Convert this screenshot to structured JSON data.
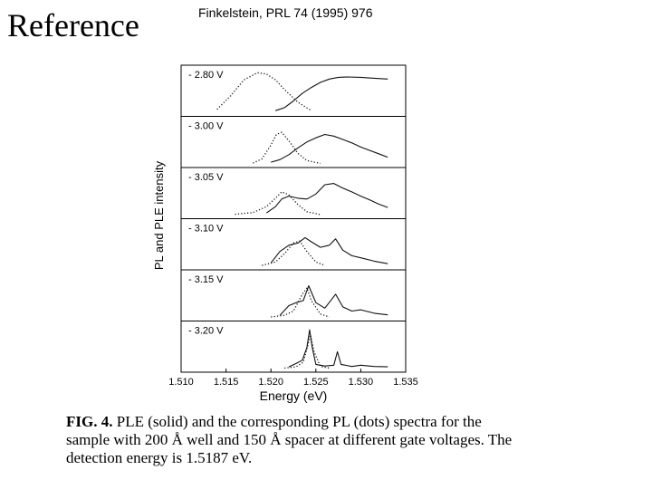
{
  "slide": {
    "title": "Reference",
    "citation": "Finkelstein, PRL 74 (1995) 976"
  },
  "figure": {
    "caption_lead": "FIG. 4.",
    "caption_body": "PLE (solid) and the corresponding PL (dots) spectra for the sample with 200 Å well and 150 Å spacer at different gate voltages. The detection energy is 1.5187 eV."
  },
  "chart_data": {
    "type": "line",
    "title": "",
    "xlabel": "Energy (eV)",
    "ylabel": "PL and PLE intensity",
    "xlim": [
      1.51,
      1.535
    ],
    "x_ticks": [
      "1.510",
      "1.515",
      "1.520",
      "1.525",
      "1.530",
      "1.535"
    ],
    "x_tick_values": [
      1.51,
      1.515,
      1.52,
      1.525,
      1.53,
      1.535
    ],
    "panels": [
      {
        "label": "- 2.80 V",
        "series": [
          {
            "name": "PLE (solid)",
            "style": "solid",
            "x": [
              1.5205,
              1.5215,
              1.5225,
              1.5235,
              1.5245,
              1.5255,
              1.5265,
              1.5275,
              1.5285,
              1.53,
              1.5315,
              1.533
            ],
            "y": [
              0.05,
              0.12,
              0.28,
              0.46,
              0.6,
              0.72,
              0.8,
              0.84,
              0.85,
              0.84,
              0.82,
              0.8
            ]
          },
          {
            "name": "PL (dots)",
            "style": "dotted",
            "x": [
              1.514,
              1.5155,
              1.517,
              1.5185,
              1.5195,
              1.5205,
              1.5215,
              1.523,
              1.5245
            ],
            "y": [
              0.08,
              0.4,
              0.78,
              0.95,
              0.92,
              0.78,
              0.55,
              0.25,
              0.05
            ]
          }
        ]
      },
      {
        "label": "- 3.00 V",
        "series": [
          {
            "name": "PLE (solid)",
            "style": "solid",
            "x": [
              1.52,
              1.521,
              1.522,
              1.523,
              1.524,
              1.525,
              1.526,
              1.527,
              1.528,
              1.529,
              1.53,
              1.531,
              1.532,
              1.533
            ],
            "y": [
              0.04,
              0.1,
              0.22,
              0.38,
              0.52,
              0.62,
              0.7,
              0.66,
              0.58,
              0.5,
              0.4,
              0.32,
              0.24,
              0.16
            ]
          },
          {
            "name": "PL (dots)",
            "style": "dotted",
            "x": [
              1.518,
              1.519,
              1.52,
              1.5206,
              1.5212,
              1.522,
              1.523,
              1.524,
              1.5255
            ],
            "y": [
              0.02,
              0.12,
              0.45,
              0.7,
              0.75,
              0.55,
              0.25,
              0.08,
              0.01
            ]
          }
        ]
      },
      {
        "label": "- 3.05 V",
        "series": [
          {
            "name": "PLE (solid)",
            "style": "solid",
            "x": [
              1.5195,
              1.5205,
              1.5212,
              1.522,
              1.523,
              1.524,
              1.525,
              1.526,
              1.527,
              1.528,
              1.529,
              1.53,
              1.531,
              1.532,
              1.533
            ],
            "y": [
              0.05,
              0.2,
              0.38,
              0.45,
              0.4,
              0.38,
              0.5,
              0.72,
              0.75,
              0.64,
              0.55,
              0.45,
              0.36,
              0.26,
              0.18
            ]
          },
          {
            "name": "PL (dots)",
            "style": "dotted",
            "x": [
              1.516,
              1.518,
              1.5195,
              1.5205,
              1.5212,
              1.522,
              1.523,
              1.524,
              1.5255
            ],
            "y": [
              0.02,
              0.06,
              0.2,
              0.4,
              0.55,
              0.48,
              0.25,
              0.08,
              0.01
            ]
          }
        ]
      },
      {
        "label": "- 3.10 V",
        "series": [
          {
            "name": "PLE (solid)",
            "style": "solid",
            "x": [
              1.52,
              1.521,
              1.522,
              1.523,
              1.5238,
              1.5245,
              1.5255,
              1.5265,
              1.5272,
              1.528,
              1.529,
              1.53,
              1.5315,
              1.533
            ],
            "y": [
              0.08,
              0.35,
              0.5,
              0.55,
              0.68,
              0.58,
              0.45,
              0.5,
              0.65,
              0.38,
              0.25,
              0.2,
              0.12,
              0.06
            ]
          },
          {
            "name": "PL (dots)",
            "style": "dotted",
            "x": [
              1.519,
              1.5205,
              1.5215,
              1.5225,
              1.5232,
              1.524,
              1.525,
              1.526
            ],
            "y": [
              0.02,
              0.1,
              0.3,
              0.55,
              0.6,
              0.35,
              0.1,
              0.02
            ]
          }
        ]
      },
      {
        "label": "- 3.15 V",
        "series": [
          {
            "name": "PLE (solid)",
            "style": "solid",
            "x": [
              1.521,
              1.522,
              1.5228,
              1.5236,
              1.5242,
              1.525,
              1.526,
              1.5272,
              1.528,
              1.529,
              1.53,
              1.5315,
              1.533
            ],
            "y": [
              0.05,
              0.28,
              0.35,
              0.4,
              0.75,
              0.35,
              0.22,
              0.55,
              0.25,
              0.15,
              0.18,
              0.1,
              0.06
            ]
          },
          {
            "name": "PL (dots)",
            "style": "dotted",
            "x": [
              1.52,
              1.5215,
              1.5225,
              1.5235,
              1.524,
              1.5245,
              1.5255,
              1.5265
            ],
            "y": [
              0.01,
              0.05,
              0.15,
              0.55,
              0.7,
              0.4,
              0.08,
              0.01
            ]
          }
        ]
      },
      {
        "label": "- 3.20 V",
        "series": [
          {
            "name": "PLE (solid)",
            "style": "solid",
            "x": [
              1.522,
              1.5228,
              1.5235,
              1.524,
              1.5243,
              1.5246,
              1.525,
              1.526,
              1.527,
              1.5274,
              1.5278,
              1.529,
              1.53,
              1.5315,
              1.533
            ],
            "y": [
              0.04,
              0.12,
              0.2,
              0.5,
              0.92,
              0.5,
              0.1,
              0.06,
              0.08,
              0.4,
              0.1,
              0.05,
              0.08,
              0.05,
              0.04
            ]
          },
          {
            "name": "PL (dots)",
            "style": "dotted",
            "x": [
              1.5215,
              1.5228,
              1.5236,
              1.5241,
              1.5244,
              1.5248,
              1.5255,
              1.5265
            ],
            "y": [
              0.01,
              0.04,
              0.15,
              0.55,
              0.8,
              0.4,
              0.05,
              0.01
            ]
          }
        ]
      }
    ]
  }
}
